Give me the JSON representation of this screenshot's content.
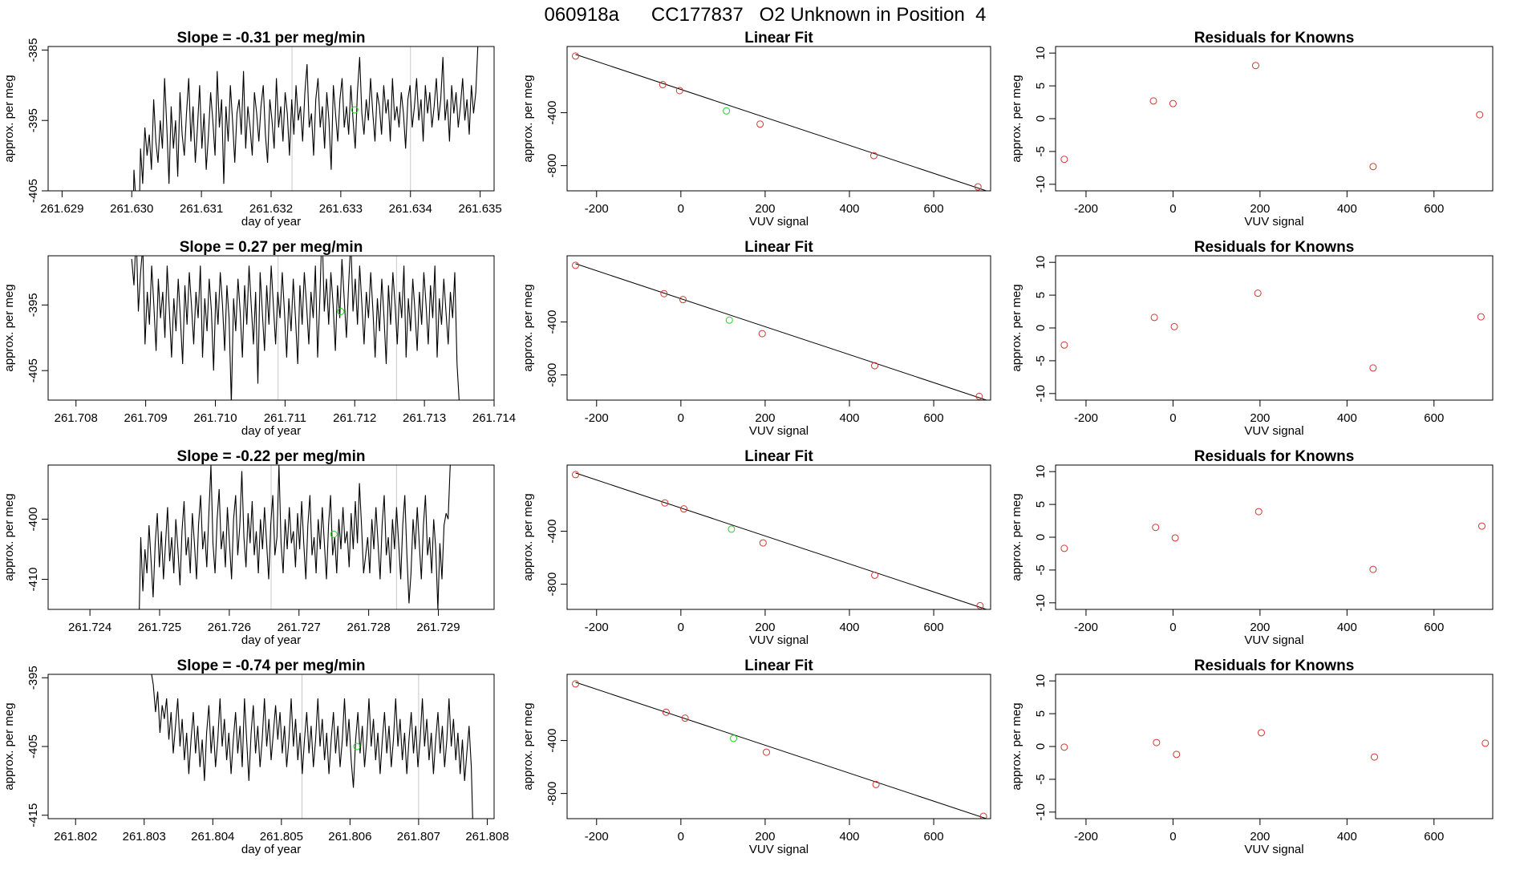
{
  "figure_title": "060918a      CC177837   O2 Unknown in Position  4",
  "colors": {
    "series": "#000000",
    "known_point": "#d2362f",
    "unknown_point": "#2ecc2e",
    "marker_line": "#c8c8c8",
    "axis": "#000000"
  },
  "chart_data": [
    {
      "type": "line",
      "row": 1,
      "title": "Slope =  -0.31  per meg/min",
      "xlabel": "day of year",
      "ylabel": "approx. per meg",
      "xlim": [
        261.6288,
        261.6352
      ],
      "ylim": [
        -405,
        -384.5
      ],
      "xticks": [
        "261.629",
        "261.630",
        "261.631",
        "261.632",
        "261.633",
        "261.634",
        "261.635"
      ],
      "yticks": [
        "-385",
        "-395",
        "-405"
      ],
      "x_start": 261.63,
      "x_end": 261.635,
      "y": [
        -420,
        -402,
        -407,
        -415,
        -399,
        -404,
        -396,
        -400,
        -397,
        -402,
        -392,
        -398,
        -401,
        -395,
        -399,
        -389,
        -396,
        -404,
        -393,
        -399,
        -395,
        -403,
        -391,
        -397,
        -400,
        -394,
        -389,
        -398,
        -393,
        -401,
        -396,
        -390,
        -399,
        -394,
        -402,
        -397,
        -391,
        -395,
        -400,
        -388,
        -396,
        -392,
        -404,
        -393,
        -398,
        -390,
        -395,
        -401,
        -394,
        -392,
        -397,
        -388,
        -399,
        -393,
        -396,
        -400,
        -391,
        -394,
        -398,
        -393,
        -390,
        -397,
        -401,
        -392,
        -395,
        -399,
        -389,
        -396,
        -393,
        -398,
        -391,
        -394,
        -400,
        -392,
        -397,
        -390,
        -395,
        -393,
        -398,
        -391,
        -387,
        -396,
        -394,
        -400,
        -392,
        -389,
        -396,
        -393,
        -399,
        -391,
        -395,
        -402,
        -390,
        -394,
        -398,
        -392,
        -389,
        -396,
        -393,
        -397,
        -390,
        -395,
        -399,
        -391,
        -386,
        -394,
        -397,
        -392,
        -395,
        -389,
        -394,
        -398,
        -391,
        -393,
        -397,
        -390,
        -394,
        -392,
        -398,
        -389,
        -395,
        -393,
        -396,
        -391,
        -394,
        -399,
        -392,
        -390,
        -396,
        -393,
        -389,
        -395,
        -392,
        -398,
        -390,
        -394,
        -391,
        -396,
        -393,
        -389,
        -395,
        -392,
        -386,
        -395,
        -392,
        -398,
        -390,
        -394,
        -391,
        -396,
        -393,
        -389,
        -395,
        -392,
        -397,
        -390,
        -394,
        -391,
        -384,
        -380
      ],
      "markers": [
        261.6323,
        261.634
      ],
      "green_point": [
        261.6332,
        -393.5
      ]
    },
    {
      "type": "line",
      "row": 2,
      "title": "Slope =  0.27  per meg/min",
      "xlabel": "day of year",
      "ylabel": "approx. per meg",
      "xlim": [
        261.7076,
        261.714
      ],
      "ylim": [
        -409.5,
        -387.5
      ],
      "xticks": [
        "261.708",
        "261.709",
        "261.710",
        "261.711",
        "261.712",
        "261.713",
        "261.714"
      ],
      "yticks": [
        "-395",
        "-405"
      ],
      "x_start": 261.7088,
      "x_end": 261.7135,
      "y": [
        -388,
        -392,
        -384,
        -396,
        -390,
        -386,
        -401,
        -393,
        -398,
        -389,
        -395,
        -402,
        -391,
        -397,
        -393,
        -400,
        -389,
        -396,
        -403,
        -394,
        -399,
        -391,
        -397,
        -404,
        -392,
        -398,
        -390,
        -395,
        -401,
        -393,
        -397,
        -389,
        -403,
        -394,
        -399,
        -391,
        -396,
        -405,
        -393,
        -398,
        -390,
        -395,
        -402,
        -392,
        -397,
        -410,
        -394,
        -399,
        -391,
        -396,
        -403,
        -392,
        -398,
        -389,
        -395,
        -401,
        -393,
        -407,
        -390,
        -396,
        -402,
        -392,
        -398,
        -389,
        -395,
        -401,
        -393,
        -397,
        -390,
        -396,
        -403,
        -394,
        -399,
        -391,
        -397,
        -404,
        -392,
        -398,
        -390,
        -395,
        -401,
        -393,
        -397,
        -389,
        -403,
        -394,
        -383,
        -396,
        -391,
        -398,
        -390,
        -395,
        -402,
        -392,
        -397,
        -388,
        -394,
        -400,
        -392,
        -385,
        -396,
        -391,
        -398,
        -389,
        -395,
        -401,
        -393,
        -397,
        -390,
        -396,
        -403,
        -394,
        -399,
        -391,
        -397,
        -404,
        -392,
        -398,
        -390,
        -395,
        -401,
        -393,
        -397,
        -389,
        -403,
        -394,
        -399,
        -391,
        -396,
        -402,
        -393,
        -398,
        -390,
        -395,
        -401,
        -392,
        -397,
        -389,
        -403,
        -394,
        -398,
        -391,
        -396,
        -401,
        -393,
        -397,
        -390,
        -404,
        -410
      ],
      "markers": [
        261.7109,
        261.7126
      ],
      "green_point": [
        261.7118,
        -396
      ]
    },
    {
      "type": "line",
      "row": 3,
      "title": "Slope =  -0.22  per meg/min",
      "xlabel": "day of year",
      "ylabel": "approx. per meg",
      "xlim": [
        261.7234,
        261.7298
      ],
      "ylim": [
        -415,
        -391
      ],
      "xticks": [
        "261.724",
        "261.725",
        "261.726",
        "261.727",
        "261.728",
        "261.729"
      ],
      "yticks": [
        "-400",
        "-410"
      ],
      "x_start": 261.7247,
      "x_end": 261.7292,
      "y": [
        -420,
        -403,
        -412,
        -405,
        -409,
        -401,
        -407,
        -413,
        -404,
        -399,
        -408,
        -402,
        -410,
        -404,
        -398,
        -407,
        -403,
        -409,
        -400,
        -405,
        -411,
        -402,
        -397,
        -406,
        -403,
        -409,
        -399,
        -404,
        -410,
        -401,
        -396,
        -405,
        -402,
        -408,
        -399,
        -391,
        -404,
        -409,
        -400,
        -395,
        -405,
        -402,
        -408,
        -398,
        -404,
        -410,
        -400,
        -396,
        -406,
        -401,
        -392,
        -403,
        -408,
        -399,
        -404,
        -397,
        -406,
        -402,
        -409,
        -400,
        -405,
        -398,
        -404,
        -410,
        -401,
        -396,
        -406,
        -403,
        -391,
        -404,
        -409,
        -400,
        -405,
        -398,
        -404,
        -402,
        -408,
        -399,
        -405,
        -397,
        -404,
        -410,
        -401,
        -396,
        -406,
        -403,
        -409,
        -400,
        -405,
        -398,
        -404,
        -410,
        -401,
        -396,
        -406,
        -403,
        -409,
        -400,
        -405,
        -398,
        -404,
        -402,
        -408,
        -399,
        -405,
        -397,
        -404,
        -394,
        -401,
        -409,
        -406,
        -403,
        -409,
        -400,
        -405,
        -398,
        -404,
        -410,
        -401,
        -396,
        -406,
        -403,
        -409,
        -400,
        -405,
        -398,
        -404,
        -410,
        -401,
        -396,
        -406,
        -414,
        -409,
        -400,
        -405,
        -398,
        -404,
        -410,
        -401,
        -396,
        -406,
        -403,
        -409,
        -400,
        -405,
        -415,
        -404,
        -410,
        -401,
        -399,
        -400,
        -391,
        -385
      ],
      "markers": [
        261.7266,
        261.7284
      ],
      "green_point": [
        261.7275,
        -402.5
      ]
    },
    {
      "type": "line",
      "row": 4,
      "title": "Slope =  -0.74  per meg/min",
      "xlabel": "day of year",
      "ylabel": "approx. per meg",
      "xlim": [
        261.8016,
        261.8081
      ],
      "ylim": [
        -415.5,
        -394.5
      ],
      "xticks": [
        "261.802",
        "261.803",
        "261.804",
        "261.805",
        "261.806",
        "261.807",
        "261.808"
      ],
      "yticks": [
        "-395",
        "-415",
        "-405"
      ],
      "x_start": 261.8031,
      "x_end": 261.8078,
      "y": [
        -394,
        -396,
        -400,
        -397,
        -403,
        -399,
        -401,
        -398,
        -404,
        -400,
        -406,
        -402,
        -398,
        -405,
        -401,
        -407,
        -403,
        -409,
        -404,
        -400,
        -406,
        -402,
        -408,
        -404,
        -410,
        -403,
        -399,
        -406,
        -402,
        -408,
        -404,
        -398,
        -405,
        -401,
        -407,
        -403,
        -409,
        -404,
        -400,
        -406,
        -402,
        -408,
        -398,
        -404,
        -410,
        -403,
        -399,
        -406,
        -402,
        -408,
        -404,
        -398,
        -405,
        -401,
        -407,
        -403,
        -399,
        -404,
        -400,
        -406,
        -402,
        -408,
        -404,
        -398,
        -405,
        -401,
        -407,
        -403,
        -409,
        -404,
        -400,
        -406,
        -402,
        -408,
        -404,
        -398,
        -405,
        -401,
        -407,
        -403,
        -409,
        -404,
        -400,
        -406,
        -402,
        -408,
        -404,
        -398,
        -405,
        -401,
        -407,
        -411,
        -404,
        -400,
        -406,
        -402,
        -408,
        -404,
        -398,
        -405,
        -401,
        -407,
        -403,
        -409,
        -404,
        -400,
        -406,
        -402,
        -408,
        -404,
        -398,
        -405,
        -401,
        -407,
        -403,
        -409,
        -404,
        -400,
        -406,
        -402,
        -408,
        -404,
        -398,
        -405,
        -401,
        -407,
        -403,
        -409,
        -404,
        -400,
        -406,
        -402,
        -408,
        -404,
        -398,
        -405,
        -401,
        -407,
        -403,
        -409,
        -404,
        -410,
        -406,
        -402,
        -408,
        -420
      ],
      "markers": [
        261.8053,
        261.807
      ],
      "green_point": [
        261.8061,
        -405
      ]
    },
    {
      "type": "scatter",
      "row": 1,
      "title": "Linear Fit",
      "xlabel": "VUV signal",
      "ylabel": "approx. per meg",
      "xlim": [
        -270,
        735
      ],
      "ylim": [
        -990,
        100
      ],
      "xticks": [
        "-200",
        "0",
        "200",
        "400",
        "600"
      ],
      "yticks": [
        "-400",
        "-800"
      ],
      "x": [
        -250,
        -43,
        -3,
        188,
        458,
        705
      ],
      "y": [
        28,
        -188,
        -233,
        -486,
        -724,
        -960
      ],
      "green_point": [
        108,
        -386
      ],
      "line": [
        [
          -250,
          40
        ],
        [
          725,
          -990
        ]
      ]
    },
    {
      "type": "scatter",
      "row": 2,
      "title": "Linear Fit",
      "xlabel": "VUV signal",
      "ylabel": "approx. per meg",
      "xlim": [
        -270,
        735
      ],
      "ylim": [
        -990,
        100
      ],
      "xticks": [
        "-200",
        "0",
        "200",
        "400",
        "600"
      ],
      "yticks": [
        "-400",
        "-800"
      ],
      "x": [
        -250,
        -40,
        5,
        193,
        460,
        708
      ],
      "y": [
        28,
        -186,
        -231,
        -488,
        -730,
        -962
      ],
      "green_point": [
        115,
        -386
      ],
      "line": [
        [
          -250,
          40
        ],
        [
          725,
          -990
        ]
      ]
    },
    {
      "type": "scatter",
      "row": 3,
      "title": "Linear Fit",
      "xlabel": "VUV signal",
      "ylabel": "approx. per meg",
      "xlim": [
        -270,
        735
      ],
      "ylim": [
        -990,
        100
      ],
      "xticks": [
        "-200",
        "0",
        "200",
        "400",
        "600"
      ],
      "yticks": [
        "-400",
        "-800"
      ],
      "x": [
        -250,
        -38,
        7,
        195,
        460,
        710
      ],
      "y": [
        28,
        -186,
        -231,
        -488,
        -732,
        -962
      ],
      "green_point": [
        120,
        -384
      ],
      "line": [
        [
          -250,
          40
        ],
        [
          725,
          -990
        ]
      ]
    },
    {
      "type": "scatter",
      "row": 4,
      "title": "Linear Fit",
      "xlabel": "VUV signal",
      "ylabel": "approx. per meg",
      "xlim": [
        -270,
        735
      ],
      "ylim": [
        -990,
        100
      ],
      "xticks": [
        "-200",
        "0",
        "200",
        "400",
        "600"
      ],
      "yticks": [
        "-400",
        "-800"
      ],
      "x": [
        -250,
        -35,
        10,
        203,
        463,
        718
      ],
      "y": [
        28,
        -186,
        -231,
        -488,
        -732,
        -972
      ],
      "green_point": [
        125,
        -384
      ],
      "line": [
        [
          -250,
          40
        ],
        [
          725,
          -990
        ]
      ]
    },
    {
      "type": "scatter",
      "row": 1,
      "title": "Residuals for Knowns",
      "xlabel": "VUV signal",
      "ylabel": "",
      "xlim": [
        -270,
        735
      ],
      "ylim": [
        -11,
        11
      ],
      "xticks": [
        "-200",
        "0",
        "200",
        "400",
        "600"
      ],
      "yticks": [
        "10",
        "5",
        "0",
        "-5",
        "-10"
      ],
      "x": [
        -250,
        -45,
        0,
        190,
        460,
        705
      ],
      "y": [
        -6.2,
        2.7,
        2.3,
        8.1,
        -7.3,
        0.6
      ]
    },
    {
      "type": "scatter",
      "row": 2,
      "title": "Residuals for Knowns",
      "xlabel": "VUV signal",
      "ylabel": "",
      "xlim": [
        -270,
        735
      ],
      "ylim": [
        -11,
        11
      ],
      "xticks": [
        "-200",
        "0",
        "200",
        "400",
        "600"
      ],
      "yticks": [
        "10",
        "5",
        "0",
        "-5",
        "-10"
      ],
      "x": [
        -250,
        -43,
        3,
        195,
        460,
        708
      ],
      "y": [
        -2.6,
        1.6,
        0.2,
        5.3,
        -6.1,
        1.7
      ]
    },
    {
      "type": "scatter",
      "row": 3,
      "title": "Residuals for Knowns",
      "xlabel": "VUV signal",
      "ylabel": "",
      "xlim": [
        -270,
        735
      ],
      "ylim": [
        -11,
        11
      ],
      "xticks": [
        "-200",
        "0",
        "200",
        "400",
        "600"
      ],
      "yticks": [
        "10",
        "5",
        "0",
        "-5",
        "-10"
      ],
      "x": [
        -250,
        -40,
        5,
        197,
        460,
        710
      ],
      "y": [
        -1.7,
        1.5,
        -0.1,
        3.9,
        -4.9,
        1.7
      ]
    },
    {
      "type": "scatter",
      "row": 4,
      "title": "Residuals for Knowns",
      "xlabel": "VUV signal",
      "ylabel": "",
      "xlim": [
        -270,
        735
      ],
      "ylim": [
        -11,
        11
      ],
      "xticks": [
        "-200",
        "0",
        "200",
        "400",
        "600"
      ],
      "yticks": [
        "10",
        "5",
        "0",
        "-5",
        "-10"
      ],
      "x": [
        -250,
        -38,
        8,
        203,
        463,
        718
      ],
      "y": [
        -0.1,
        0.6,
        -1.2,
        2.1,
        -1.6,
        0.5
      ]
    }
  ],
  "residual_ylabel": "approx. per meg"
}
